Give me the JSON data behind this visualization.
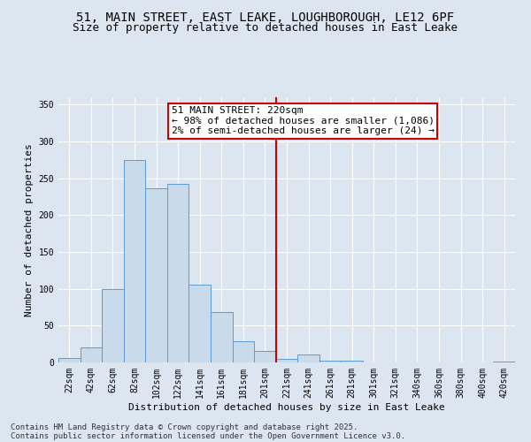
{
  "title_line1": "51, MAIN STREET, EAST LEAKE, LOUGHBOROUGH, LE12 6PF",
  "title_line2": "Size of property relative to detached houses in East Leake",
  "xlabel": "Distribution of detached houses by size in East Leake",
  "ylabel": "Number of detached properties",
  "categories": [
    "22sqm",
    "42sqm",
    "62sqm",
    "82sqm",
    "102sqm",
    "122sqm",
    "141sqm",
    "161sqm",
    "181sqm",
    "201sqm",
    "221sqm",
    "241sqm",
    "261sqm",
    "281sqm",
    "301sqm",
    "321sqm",
    "340sqm",
    "360sqm",
    "380sqm",
    "400sqm",
    "420sqm"
  ],
  "values": [
    6,
    20,
    100,
    275,
    237,
    243,
    106,
    68,
    29,
    16,
    5,
    11,
    3,
    2,
    0,
    0,
    0,
    0,
    0,
    0,
    1
  ],
  "bar_color": "#c9daea",
  "bar_edge_color": "#5b9bd5",
  "vline_x_idx": 9.5,
  "vline_color": "#cc0000",
  "annotation_text": "51 MAIN STREET: 220sqm\n← 98% of detached houses are smaller (1,086)\n2% of semi-detached houses are larger (24) →",
  "annotation_box_color": "#ffffff",
  "annotation_box_edge_color": "#cc0000",
  "ylim": [
    0,
    360
  ],
  "yticks": [
    0,
    50,
    100,
    150,
    200,
    250,
    300,
    350
  ],
  "bg_color": "#dce6f1",
  "plot_bg_color": "#dce6f1",
  "footer_line1": "Contains HM Land Registry data © Crown copyright and database right 2025.",
  "footer_line2": "Contains public sector information licensed under the Open Government Licence v3.0.",
  "title_fontsize": 10,
  "subtitle_fontsize": 9,
  "label_fontsize": 8,
  "tick_fontsize": 7,
  "annotation_fontsize": 8,
  "footer_fontsize": 6.5
}
